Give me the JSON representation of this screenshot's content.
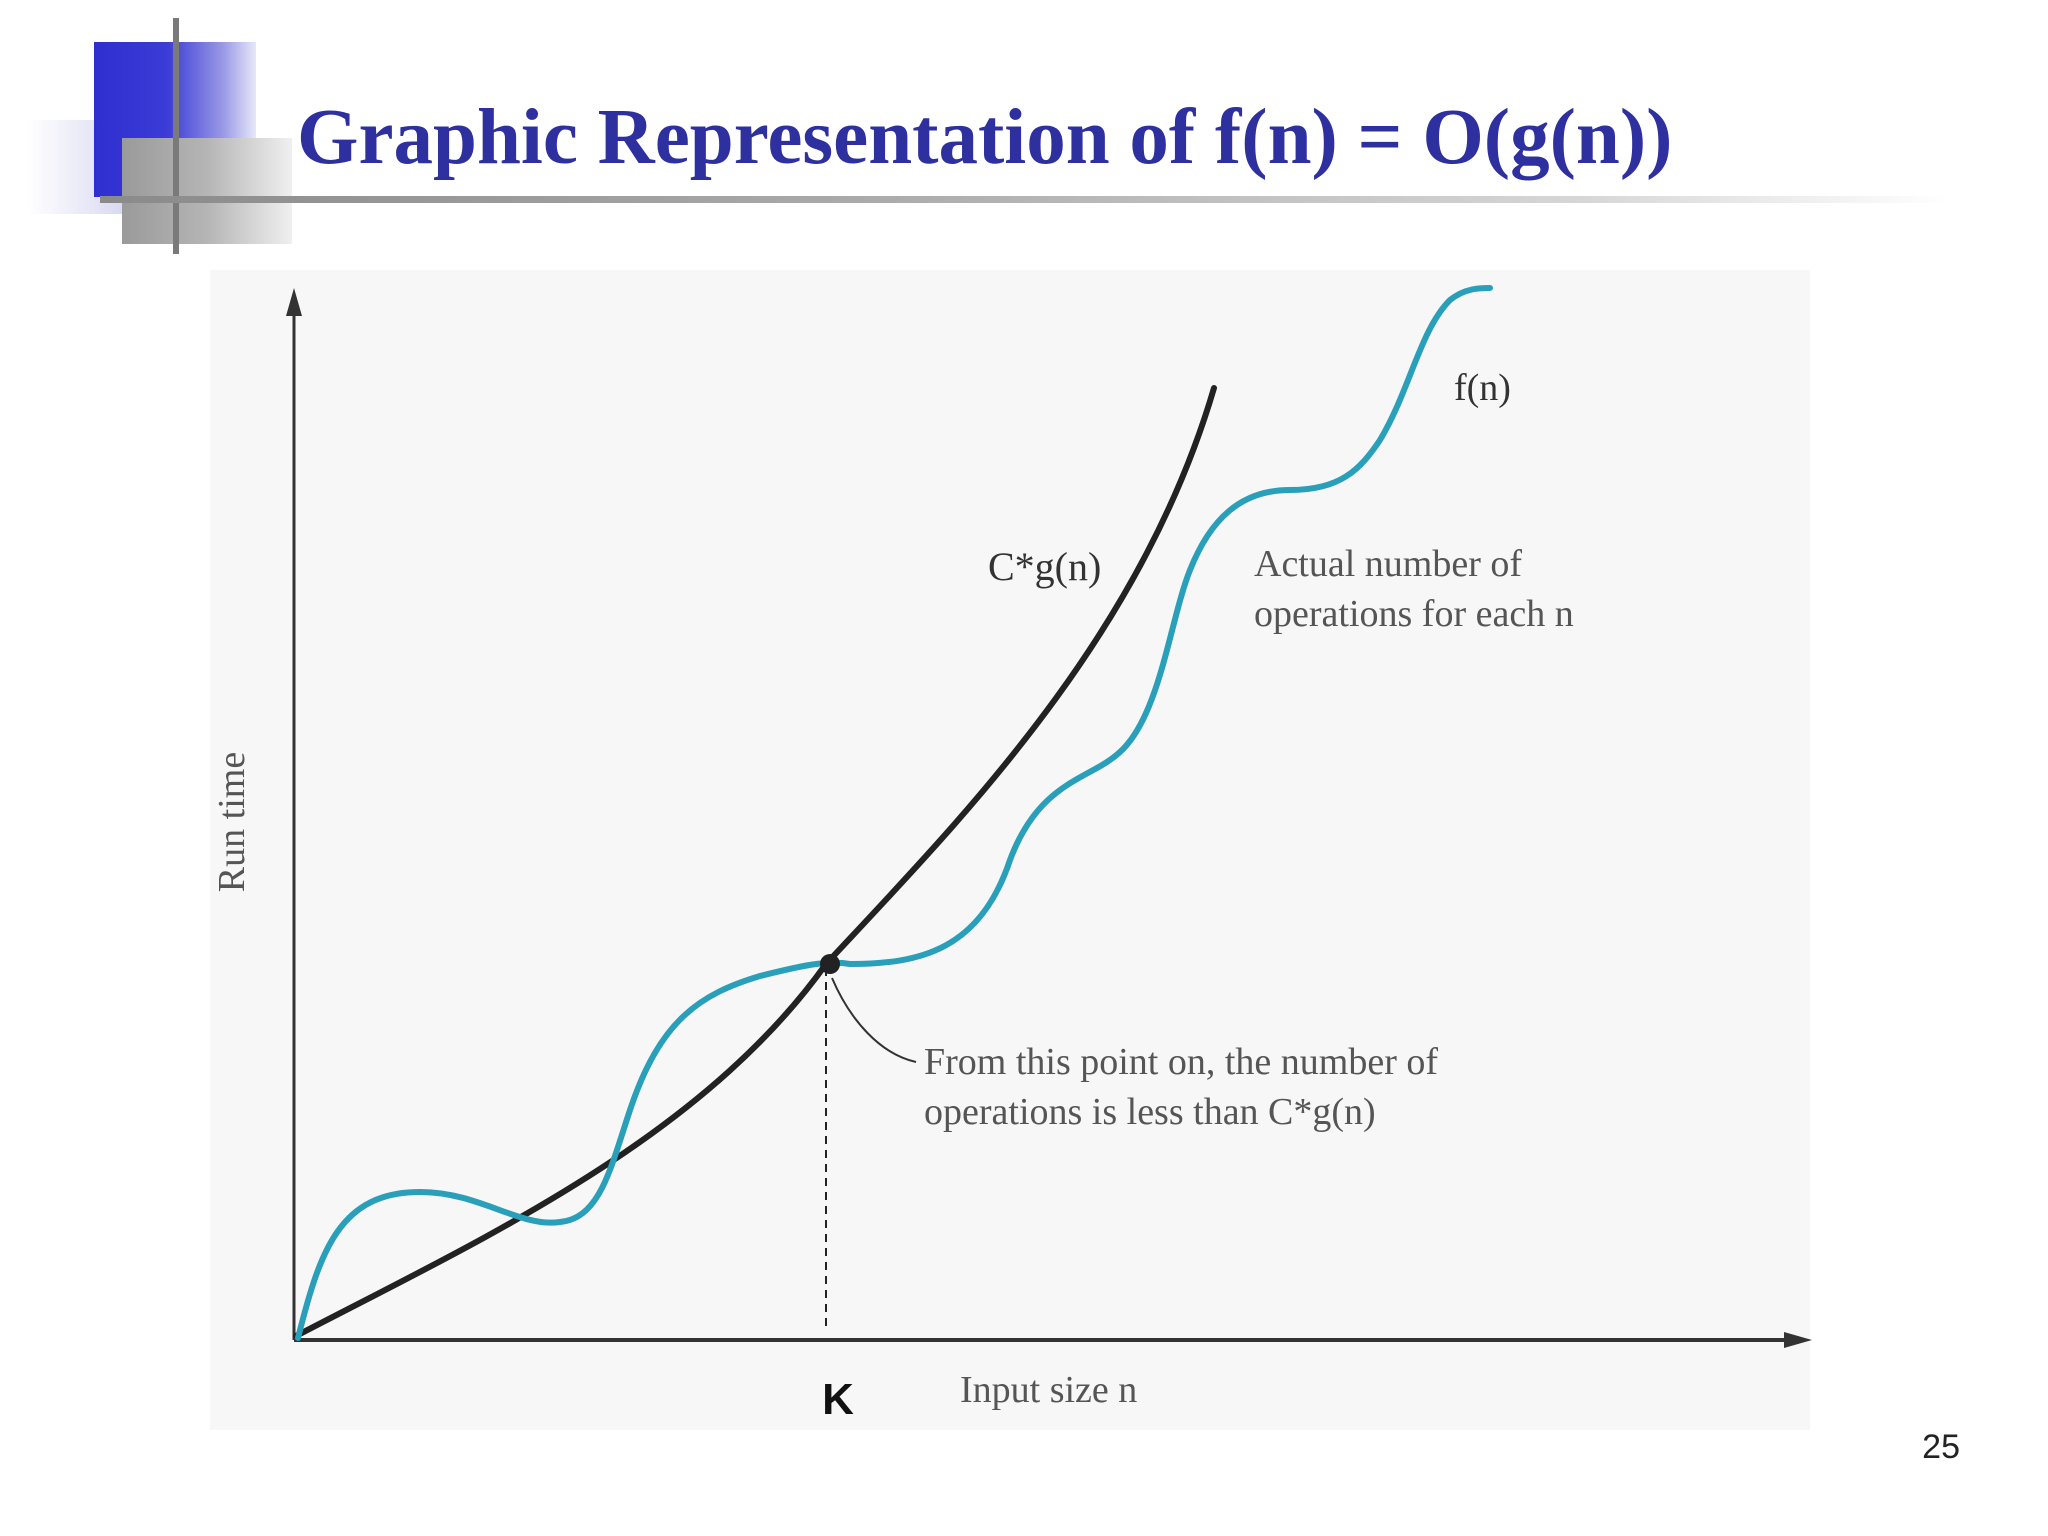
{
  "slide": {
    "title": "Graphic Representation of f(n) = O(g(n))",
    "page_number": "25"
  },
  "diagram": {
    "y_axis_label": "Run time",
    "x_axis_label": "Input size n",
    "crossover_label": "K",
    "curves": {
      "cg": {
        "label": "C*g(n)",
        "color": "#222222"
      },
      "f": {
        "label": "f(n)",
        "color": "#2a9fba"
      }
    },
    "annotations": {
      "actual_line1": "Actual number of",
      "actual_line2": "operations for each n",
      "from_line1": "From this point on, the number of",
      "from_line2": "operations is less than C*g(n)"
    }
  }
}
